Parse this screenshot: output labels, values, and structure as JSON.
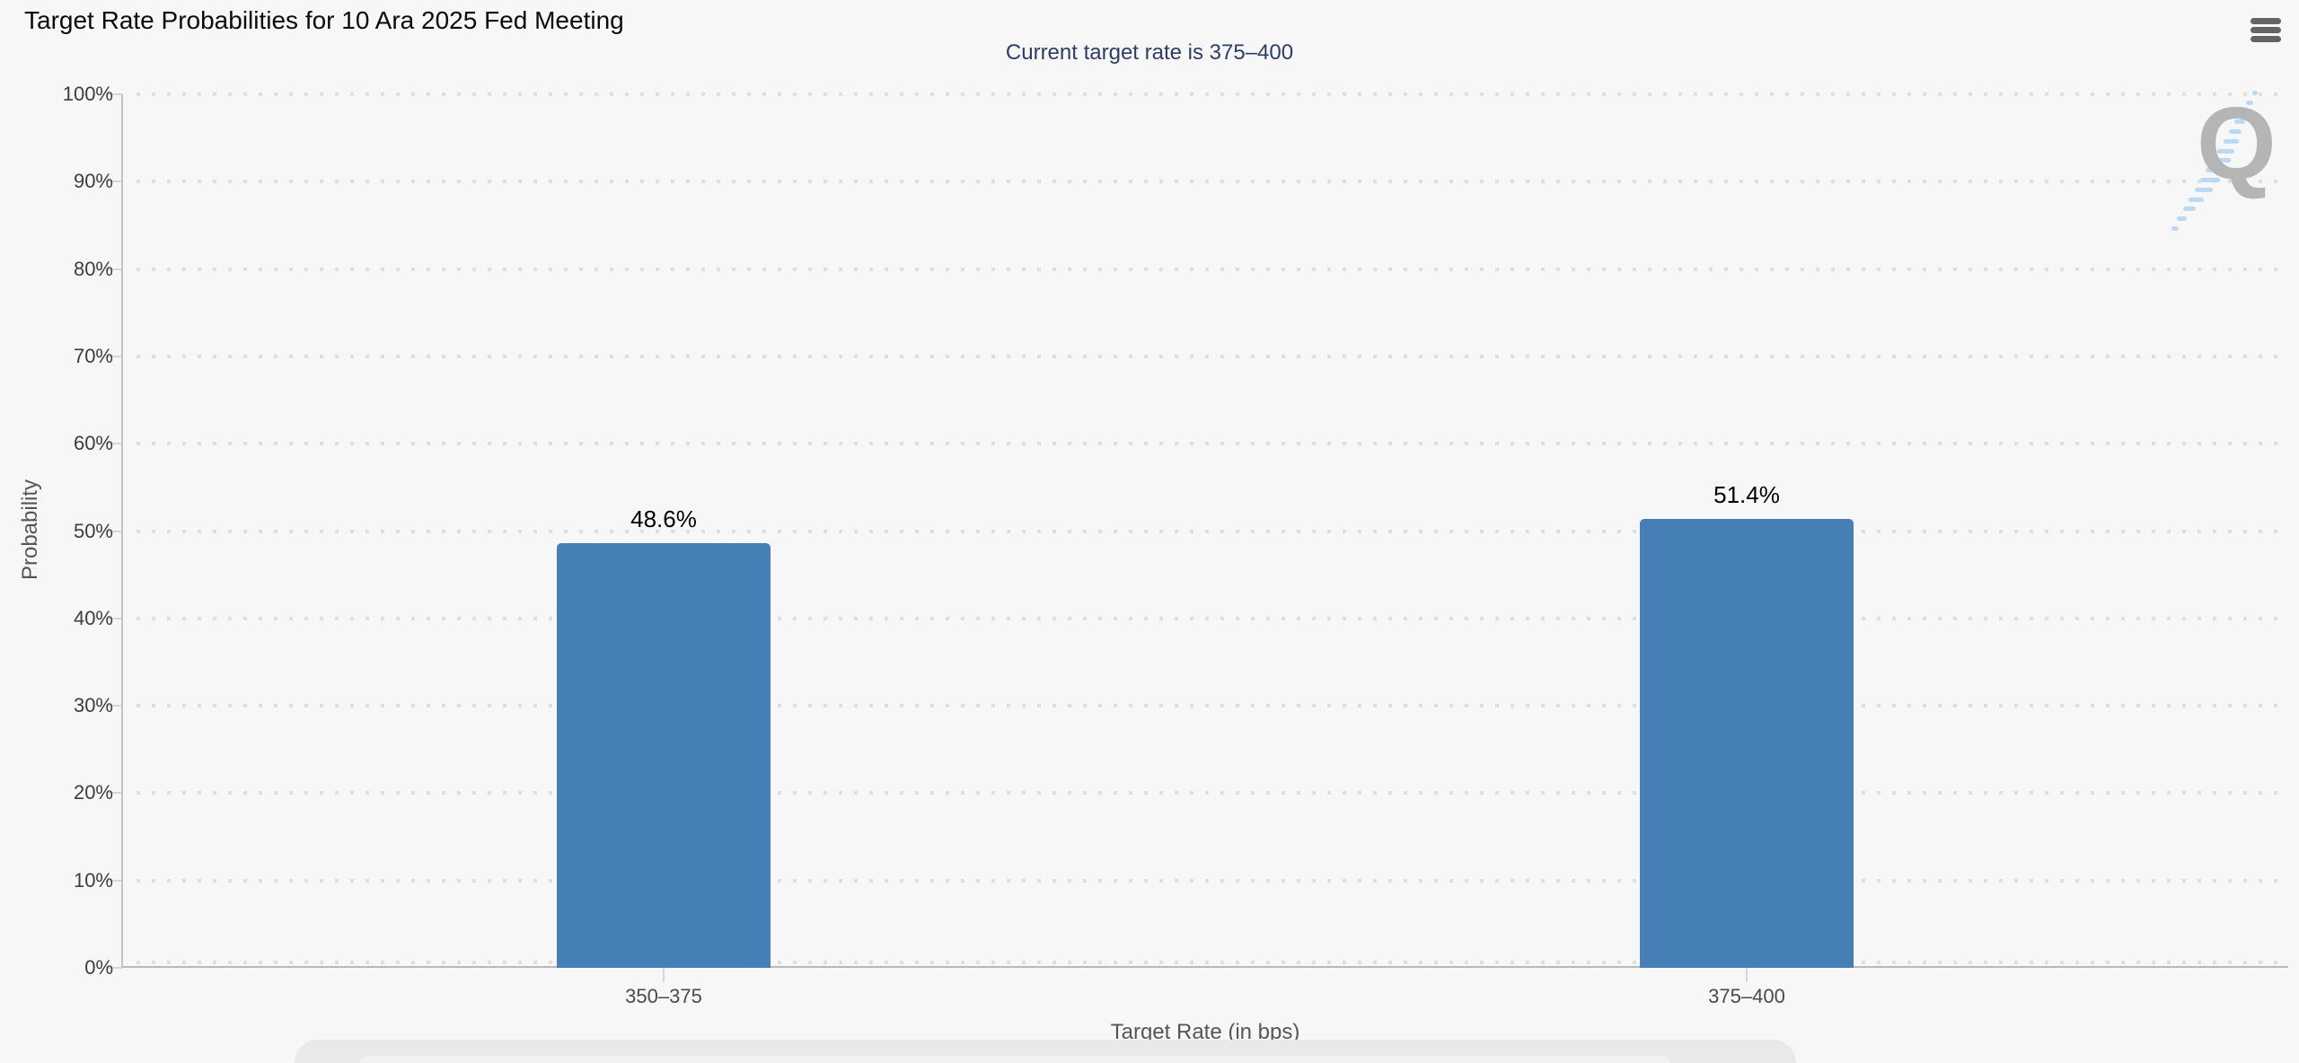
{
  "header": {
    "title": "Target Rate Probabilities for 10 Ara 2025 Fed Meeting",
    "menu_icon": "hamburger-menu-icon"
  },
  "watermark": {
    "letter": "Q"
  },
  "colors": {
    "background": "#f7f7f7",
    "bar": "#457fb5",
    "title_text": "#0b0b0b",
    "subtitle": "#2c3e67",
    "grid_dot": "#dedede",
    "axis_line": "#c3c3c3",
    "baseline": "#b9b9b9",
    "tick_mark": "#d6d6d6",
    "tick_text": "#3d3d3d",
    "xtick_text": "#4a4a4a",
    "axis_title_text": "#565656",
    "value_label_text": "#000000",
    "menu_icon": "#646464",
    "watermark_q": "#b5b5b5",
    "watermark_dash": "#bad9f2",
    "blob_outer": "#e9e9e9",
    "blob_inner": "#f1f1f1"
  },
  "chart_data": {
    "type": "bar",
    "title": "Target Rate Probabilities for 10 Ara 2025 Fed Meeting",
    "subtitle": "Current target rate is 375–400",
    "categories": [
      "350–375",
      "375–400"
    ],
    "values": [
      48.6,
      51.4
    ],
    "value_labels": [
      "48.6%",
      "51.4%"
    ],
    "xlabel": "Target Rate (in bps)",
    "ylabel": "Probability",
    "ylim": [
      0,
      100
    ],
    "y_ticks": [
      "0%",
      "10%",
      "20%",
      "30%",
      "40%",
      "50%",
      "60%",
      "70%",
      "80%",
      "90%",
      "100%"
    ],
    "grid": "dotted-horizontal",
    "legend": "none",
    "bar_color": "#457fb5"
  }
}
